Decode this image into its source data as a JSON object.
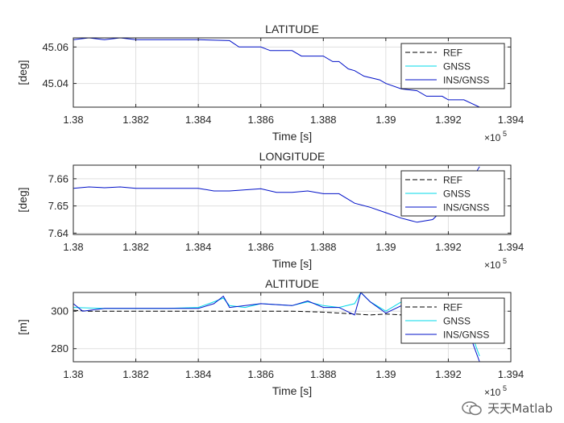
{
  "chart_data": [
    {
      "type": "line",
      "title": "LATITUDE",
      "xlabel": "Time [s]",
      "ylabel": "[deg]",
      "x_multiplier_label": "×10",
      "x_multiplier_exp": "5",
      "xlim": [
        1.38,
        1.394
      ],
      "ylim": [
        45.027,
        45.065
      ],
      "xticks": [
        "1.38",
        "1.382",
        "1.384",
        "1.386",
        "1.388",
        "1.39",
        "1.392",
        "1.394"
      ],
      "yticks": [
        "45.04",
        "45.06"
      ],
      "grid": true,
      "legend": {
        "position": "top-right",
        "entries": [
          "REF",
          "GNSS",
          "INS/GNSS"
        ]
      },
      "series": [
        {
          "name": "REF",
          "color": "#000000",
          "style": "dashed",
          "x": [],
          "y": []
        },
        {
          "name": "GNSS",
          "color": "#00d8e8",
          "style": "solid",
          "x": [],
          "y": []
        },
        {
          "name": "INS/GNSS",
          "color": "#0010c8",
          "style": "solid",
          "x": [
            1.38,
            1.3805,
            1.381,
            1.3815,
            1.382,
            1.383,
            1.384,
            1.385,
            1.3853,
            1.386,
            1.3863,
            1.387,
            1.3873,
            1.388,
            1.3883,
            1.3885,
            1.3888,
            1.389,
            1.3893,
            1.3898,
            1.39,
            1.3905,
            1.391,
            1.3913,
            1.3918,
            1.392,
            1.3925,
            1.393
          ],
          "y": [
            45.064,
            45.065,
            45.064,
            45.065,
            45.064,
            45.064,
            45.064,
            45.0635,
            45.06,
            45.06,
            45.058,
            45.058,
            45.055,
            45.055,
            45.052,
            45.052,
            45.048,
            45.047,
            45.044,
            45.042,
            45.04,
            45.037,
            45.036,
            45.033,
            45.033,
            45.031,
            45.031,
            45.027
          ]
        }
      ]
    },
    {
      "type": "line",
      "title": "LONGITUDE",
      "xlabel": "Time [s]",
      "ylabel": "[deg]",
      "x_multiplier_label": "×10",
      "x_multiplier_exp": "5",
      "xlim": [
        1.38,
        1.394
      ],
      "ylim": [
        7.6395,
        7.665
      ],
      "xticks": [
        "1.38",
        "1.382",
        "1.384",
        "1.386",
        "1.388",
        "1.39",
        "1.392",
        "1.394"
      ],
      "yticks": [
        "7.64",
        "7.65",
        "7.66"
      ],
      "grid": true,
      "legend": {
        "position": "top-right",
        "entries": [
          "REF",
          "GNSS",
          "INS/GNSS"
        ]
      },
      "series": [
        {
          "name": "REF",
          "color": "#000000",
          "style": "dashed",
          "x": [],
          "y": []
        },
        {
          "name": "GNSS",
          "color": "#00d8e8",
          "style": "solid",
          "x": [],
          "y": []
        },
        {
          "name": "INS/GNSS",
          "color": "#0010c8",
          "style": "solid",
          "x": [
            1.38,
            1.3805,
            1.381,
            1.3815,
            1.382,
            1.383,
            1.384,
            1.3845,
            1.385,
            1.386,
            1.3865,
            1.387,
            1.3875,
            1.388,
            1.3885,
            1.389,
            1.3895,
            1.39,
            1.3905,
            1.391,
            1.3915,
            1.392,
            1.3925,
            1.393
          ],
          "y": [
            7.6565,
            7.657,
            7.6567,
            7.657,
            7.6565,
            7.6565,
            7.6565,
            7.6555,
            7.6555,
            7.6563,
            7.655,
            7.655,
            7.6555,
            7.6545,
            7.6545,
            7.651,
            7.6495,
            7.6475,
            7.6455,
            7.644,
            7.645,
            7.6505,
            7.655,
            7.6645
          ]
        }
      ]
    },
    {
      "type": "line",
      "title": "ALTITUDE",
      "xlabel": "Time [s]",
      "ylabel": "[m]",
      "x_multiplier_label": "×10",
      "x_multiplier_exp": "5",
      "xlim": [
        1.38,
        1.394
      ],
      "ylim": [
        273,
        310
      ],
      "xticks": [
        "1.38",
        "1.382",
        "1.384",
        "1.386",
        "1.388",
        "1.39",
        "1.392",
        "1.394"
      ],
      "yticks": [
        "280",
        "300"
      ],
      "grid": true,
      "legend": {
        "position": "top-right",
        "entries": [
          "REF",
          "GNSS",
          "INS/GNSS"
        ]
      },
      "series": [
        {
          "name": "REF",
          "color": "#000000",
          "style": "dashed",
          "x": [
            1.38,
            1.3805,
            1.382,
            1.384,
            1.385,
            1.386,
            1.387,
            1.388,
            1.389,
            1.3895,
            1.39,
            1.3905
          ],
          "y": [
            300.5,
            300,
            300,
            300,
            300,
            300,
            300,
            299.5,
            298.5,
            298,
            298.5,
            298
          ]
        },
        {
          "name": "GNSS",
          "color": "#00d8e8",
          "style": "solid",
          "x": [
            1.38,
            1.381,
            1.382,
            1.383,
            1.384,
            1.3845,
            1.3848,
            1.385,
            1.3855,
            1.386,
            1.387,
            1.3875,
            1.388,
            1.3885,
            1.389,
            1.3892,
            1.3895,
            1.39,
            1.3905,
            1.391,
            1.3915,
            1.392,
            1.3925,
            1.3928,
            1.393
          ],
          "y": [
            302,
            301.5,
            301.5,
            301.5,
            302,
            305,
            307,
            303,
            302,
            304,
            303,
            305,
            303,
            302,
            304,
            310,
            305,
            300,
            305,
            301,
            300,
            301,
            299,
            285,
            276
          ]
        },
        {
          "name": "INS/GNSS",
          "color": "#0010c8",
          "style": "solid",
          "x": [
            1.38,
            1.3803,
            1.381,
            1.382,
            1.383,
            1.384,
            1.3845,
            1.3848,
            1.385,
            1.3855,
            1.386,
            1.387,
            1.3875,
            1.388,
            1.3885,
            1.389,
            1.3892,
            1.3895,
            1.39,
            1.3905,
            1.391,
            1.3915,
            1.392,
            1.3925,
            1.3928,
            1.393
          ],
          "y": [
            304,
            300,
            301.5,
            301.5,
            301.5,
            301.5,
            304,
            308,
            302,
            303,
            304,
            303,
            305.5,
            302,
            302,
            298,
            310,
            305,
            299,
            303,
            300,
            301,
            302,
            299,
            282,
            273
          ]
        }
      ]
    }
  ],
  "watermark": {
    "text": "天天Matlab"
  }
}
